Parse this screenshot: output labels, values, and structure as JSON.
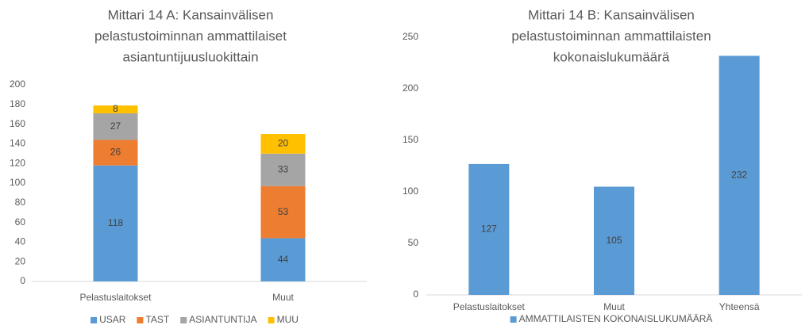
{
  "chart_data": [
    {
      "type": "stacked_bar",
      "title": [
        "Mittari 14 A: Kansainvälisen",
        "pelastustoiminnan ammattilaiset",
        "asiantuntijuusluokittain"
      ],
      "categories": [
        "Pelastuslaitokset",
        "Muut"
      ],
      "series": [
        {
          "name": "USAR",
          "color": "#5b9bd5",
          "values": [
            118,
            44
          ]
        },
        {
          "name": "TAST",
          "color": "#ed7d31",
          "values": [
            26,
            53
          ]
        },
        {
          "name": "ASIANTUNTIJA",
          "color": "#a5a5a5",
          "values": [
            27,
            33
          ]
        },
        {
          "name": "MUU",
          "color": "#ffc000",
          "values": [
            8,
            20
          ]
        }
      ],
      "ylim": [
        0,
        200
      ],
      "yticks": [
        0,
        20,
        40,
        60,
        80,
        100,
        120,
        140,
        160,
        180,
        200
      ],
      "grid": false,
      "legend": "bottom"
    },
    {
      "type": "bar",
      "title": [
        "Mittari 14 B: Kansainvälisen",
        "pelastustoiminnan ammattilaisten",
        "kokonaislukumäärä"
      ],
      "categories": [
        "Pelastuslaitokset",
        "Muut",
        "Yhteensä"
      ],
      "series": [
        {
          "name": "AMMATTILAISTEN KOKONAISLUKUMÄÄRÄ",
          "color": "#5b9bd5",
          "values": [
            127,
            105,
            232
          ]
        }
      ],
      "ylim": [
        0,
        250
      ],
      "yticks": [
        0,
        50,
        100,
        150,
        200,
        250
      ],
      "grid": false,
      "legend": "bottom"
    }
  ]
}
